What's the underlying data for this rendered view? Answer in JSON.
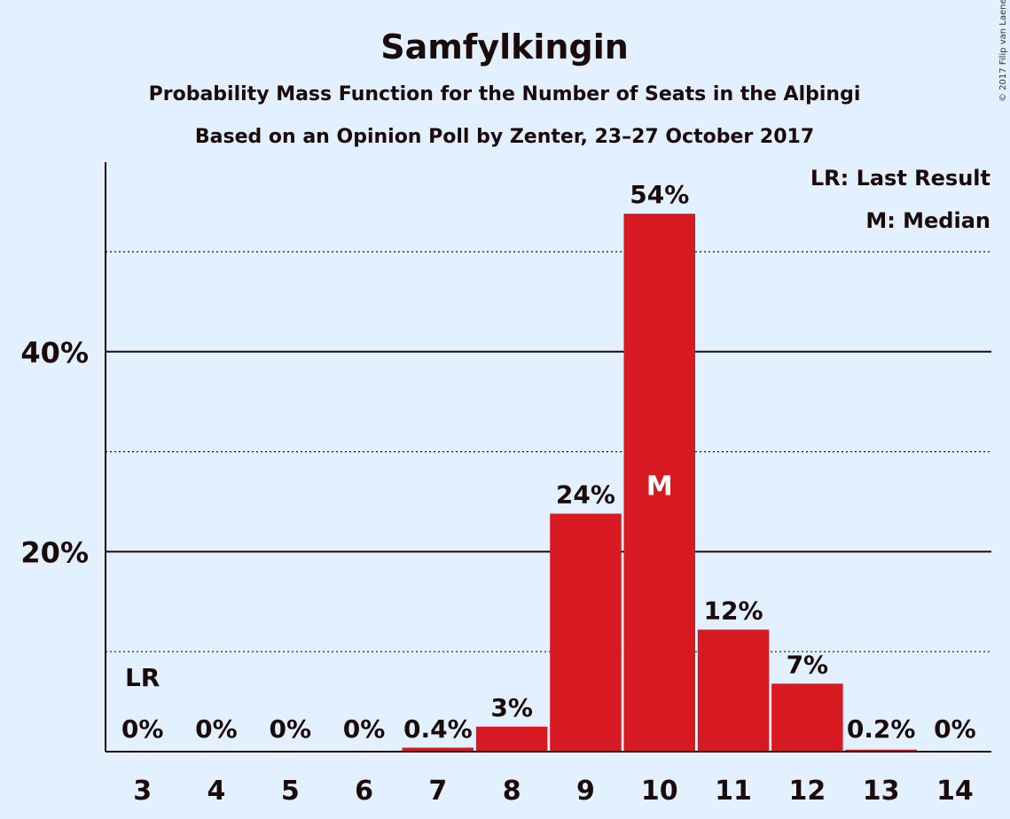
{
  "chart_data": {
    "type": "bar",
    "title": "Samfylkingin",
    "subtitle": "Probability Mass Function for the Number of Seats in the Alþingi",
    "subtitle2": "Based on an Opinion Poll by Zenter, 23–27 October 2017",
    "categories": [
      "3",
      "4",
      "5",
      "6",
      "7",
      "8",
      "9",
      "10",
      "11",
      "12",
      "13",
      "14"
    ],
    "values": [
      0,
      0,
      0,
      0,
      0.4,
      2.5,
      23.8,
      53.8,
      12.2,
      6.8,
      0.2,
      0
    ],
    "value_labels": [
      "0%",
      "0%",
      "0%",
      "0%",
      "0.4%",
      "3%",
      "24%",
      "54%",
      "12%",
      "7%",
      "0.2%",
      "0%"
    ],
    "ylim": [
      0,
      59
    ],
    "yticks": [
      20,
      40
    ],
    "ytick_labels": [
      "20%",
      "40%"
    ],
    "dotted_gridlines": [
      10,
      30,
      50
    ],
    "last_result_category": "3",
    "last_result_marker": "LR",
    "median_category": "10",
    "median_marker": "M",
    "legend": [
      "LR: Last Result",
      "M: Median"
    ],
    "bar_color": "#d71a21",
    "copyright": "© 2017 Filip van Laenen"
  }
}
